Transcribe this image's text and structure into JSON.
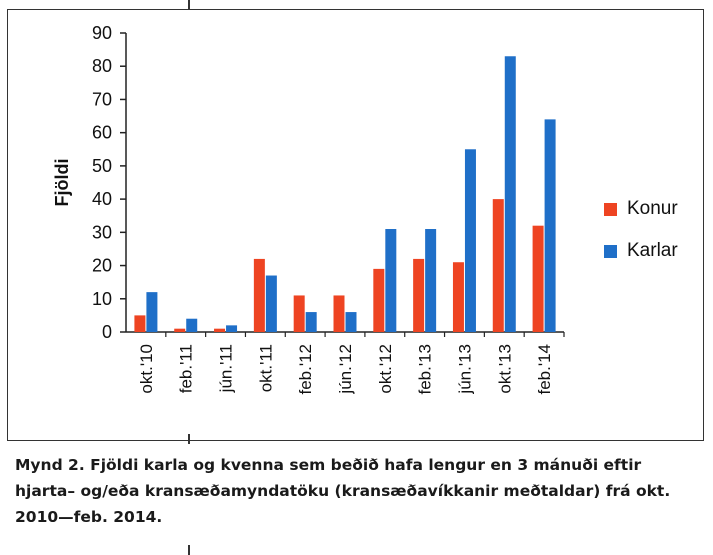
{
  "chart_data": {
    "type": "bar",
    "categories": [
      "okt.'10",
      "feb.'11",
      "jún.'11",
      "okt.'11",
      "feb.'12",
      "jún.'12",
      "okt.'12",
      "feb.'13",
      "jún.'13",
      "okt.'13",
      "feb.'14"
    ],
    "series": [
      {
        "name": "Konur",
        "color": "#ee4422",
        "values": [
          5,
          1,
          1,
          22,
          11,
          11,
          19,
          22,
          21,
          40,
          32
        ]
      },
      {
        "name": "Karlar",
        "color": "#1f6fc8",
        "values": [
          12,
          4,
          2,
          17,
          6,
          6,
          31,
          31,
          55,
          83,
          64
        ]
      }
    ],
    "yticks": [
      0,
      10,
      20,
      30,
      40,
      50,
      60,
      70,
      80,
      90
    ],
    "ylim": [
      0,
      90
    ],
    "ylabel": "Fjöldi",
    "xlabel": "",
    "legend_position": "right",
    "grid": false
  },
  "caption": "Mynd 2. Fjöldi karla og kvenna sem beðið hafa lengur en 3 mánuði eftir hjarta– og/eða kransæðamyndatöku (kransæðavíkkanir meðtaldar) frá okt. 2010—feb. 2014."
}
